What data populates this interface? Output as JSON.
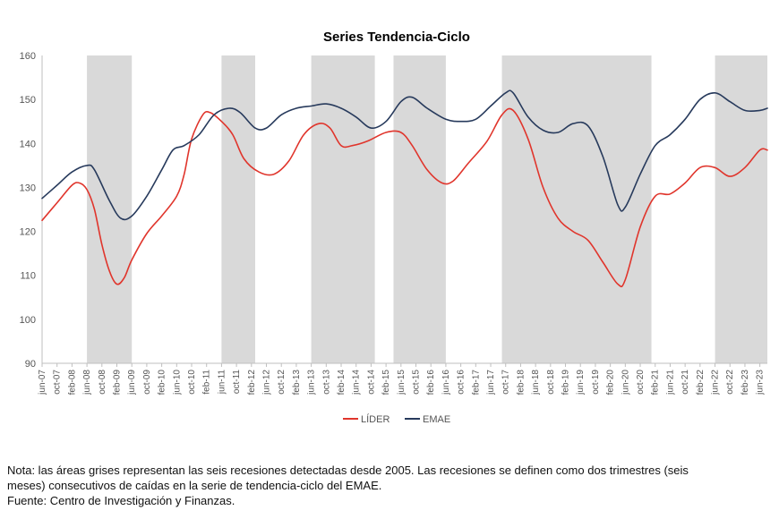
{
  "chart_data": {
    "type": "line",
    "title": "Series Tendencia-Ciclo",
    "ylim": [
      90,
      160
    ],
    "yticks": [
      90,
      100,
      110,
      120,
      130,
      140,
      150,
      160
    ],
    "x_range": [
      "2007-06",
      "2023-08"
    ],
    "xtick_labels": [
      "jun-07",
      "oct-07",
      "feb-08",
      "jun-08",
      "oct-08",
      "feb-09",
      "jun-09",
      "oct-09",
      "feb-10",
      "jun-10",
      "oct-10",
      "feb-11",
      "jun-11",
      "oct-11",
      "feb-12",
      "jun-12",
      "oct-12",
      "feb-13",
      "jun-13",
      "oct-13",
      "feb-14",
      "jun-14",
      "oct-14",
      "feb-15",
      "jun-15",
      "oct-15",
      "feb-16",
      "jun-16",
      "oct-16",
      "feb-17",
      "jun-17",
      "oct-17",
      "feb-18",
      "jun-18",
      "oct-18",
      "feb-19",
      "jun-19",
      "oct-19",
      "feb-20",
      "jun-20",
      "oct-20",
      "feb-21",
      "jun-21",
      "oct-21",
      "feb-22",
      "jun-22",
      "oct-22",
      "feb-23",
      "jun-23"
    ],
    "recessions": [
      [
        "2008-06",
        "2009-06"
      ],
      [
        "2011-06",
        "2012-03"
      ],
      [
        "2013-06",
        "2014-11"
      ],
      [
        "2015-04",
        "2016-06"
      ],
      [
        "2017-09",
        "2021-01"
      ],
      [
        "2022-06",
        "2023-08"
      ]
    ],
    "series": [
      {
        "name": "LÍDER",
        "color": "#e0352c",
        "points": [
          [
            "2007-06",
            122.5
          ],
          [
            "2007-10",
            126.5
          ],
          [
            "2008-02",
            130.5
          ],
          [
            "2008-04",
            131.0
          ],
          [
            "2008-06",
            129.5
          ],
          [
            "2008-08",
            125.0
          ],
          [
            "2008-10",
            117.0
          ],
          [
            "2008-12",
            111.0
          ],
          [
            "2009-02",
            108.0
          ],
          [
            "2009-04",
            109.5
          ],
          [
            "2009-06",
            113.5
          ],
          [
            "2009-10",
            119.5
          ],
          [
            "2010-02",
            123.5
          ],
          [
            "2010-06",
            128.0
          ],
          [
            "2010-08",
            133.0
          ],
          [
            "2010-10",
            141.0
          ],
          [
            "2011-01",
            146.5
          ],
          [
            "2011-03",
            147.0
          ],
          [
            "2011-06",
            145.0
          ],
          [
            "2011-09",
            142.0
          ],
          [
            "2011-12",
            136.5
          ],
          [
            "2012-04",
            133.5
          ],
          [
            "2012-08",
            133.0
          ],
          [
            "2012-12",
            136.0
          ],
          [
            "2013-04",
            142.0
          ],
          [
            "2013-08",
            144.5
          ],
          [
            "2013-11",
            143.5
          ],
          [
            "2014-02",
            139.5
          ],
          [
            "2014-05",
            139.5
          ],
          [
            "2014-09",
            140.5
          ],
          [
            "2015-02",
            142.5
          ],
          [
            "2015-06",
            142.5
          ],
          [
            "2015-09",
            139.5
          ],
          [
            "2016-01",
            134.0
          ],
          [
            "2016-05",
            131.0
          ],
          [
            "2016-08",
            131.5
          ],
          [
            "2016-12",
            135.5
          ],
          [
            "2017-05",
            140.5
          ],
          [
            "2017-09",
            146.5
          ],
          [
            "2017-12",
            147.5
          ],
          [
            "2018-04",
            141.0
          ],
          [
            "2018-08",
            130.0
          ],
          [
            "2018-12",
            123.0
          ],
          [
            "2019-04",
            120.0
          ],
          [
            "2019-08",
            118.0
          ],
          [
            "2019-12",
            113.0
          ],
          [
            "2020-04",
            108.0
          ],
          [
            "2020-06",
            109.0
          ],
          [
            "2020-10",
            121.0
          ],
          [
            "2021-02",
            128.0
          ],
          [
            "2021-06",
            128.5
          ],
          [
            "2021-10",
            131.0
          ],
          [
            "2022-02",
            134.5
          ],
          [
            "2022-06",
            134.5
          ],
          [
            "2022-10",
            132.5
          ],
          [
            "2023-02",
            134.5
          ],
          [
            "2023-06",
            138.5
          ],
          [
            "2023-08",
            138.5
          ]
        ]
      },
      {
        "name": "EMAE",
        "color": "#273a5c",
        "points": [
          [
            "2007-06",
            127.5
          ],
          [
            "2007-10",
            130.5
          ],
          [
            "2008-02",
            133.5
          ],
          [
            "2008-06",
            135.0
          ],
          [
            "2008-08",
            134.0
          ],
          [
            "2008-12",
            127.0
          ],
          [
            "2009-03",
            123.0
          ],
          [
            "2009-06",
            123.5
          ],
          [
            "2009-10",
            128.0
          ],
          [
            "2010-02",
            134.0
          ],
          [
            "2010-05",
            138.5
          ],
          [
            "2010-08",
            139.5
          ],
          [
            "2010-12",
            142.0
          ],
          [
            "2011-04",
            146.5
          ],
          [
            "2011-08",
            148.0
          ],
          [
            "2011-11",
            147.0
          ],
          [
            "2012-03",
            143.5
          ],
          [
            "2012-06",
            143.5
          ],
          [
            "2012-10",
            146.5
          ],
          [
            "2013-02",
            148.0
          ],
          [
            "2013-06",
            148.5
          ],
          [
            "2013-10",
            149.0
          ],
          [
            "2014-02",
            148.0
          ],
          [
            "2014-06",
            146.0
          ],
          [
            "2014-10",
            143.5
          ],
          [
            "2015-02",
            145.0
          ],
          [
            "2015-06",
            149.5
          ],
          [
            "2015-09",
            150.5
          ],
          [
            "2016-01",
            148.0
          ],
          [
            "2016-06",
            145.5
          ],
          [
            "2016-10",
            145.0
          ],
          [
            "2017-02",
            145.5
          ],
          [
            "2017-06",
            148.5
          ],
          [
            "2017-10",
            151.5
          ],
          [
            "2017-12",
            151.5
          ],
          [
            "2018-04",
            146.0
          ],
          [
            "2018-08",
            143.0
          ],
          [
            "2018-12",
            142.5
          ],
          [
            "2019-04",
            144.5
          ],
          [
            "2019-08",
            144.0
          ],
          [
            "2019-12",
            137.0
          ],
          [
            "2020-04",
            126.0
          ],
          [
            "2020-06",
            125.5
          ],
          [
            "2020-10",
            133.0
          ],
          [
            "2021-02",
            139.5
          ],
          [
            "2021-06",
            142.0
          ],
          [
            "2021-10",
            145.5
          ],
          [
            "2022-02",
            150.0
          ],
          [
            "2022-06",
            151.5
          ],
          [
            "2022-10",
            149.5
          ],
          [
            "2023-02",
            147.5
          ],
          [
            "2023-06",
            147.5
          ],
          [
            "2023-08",
            148.0
          ]
        ]
      }
    ],
    "legend_position": "bottom-center",
    "grid": false
  },
  "footnote": {
    "line1": "Nota: las áreas grises representan las seis recesiones detectadas desde 2005. Las recesiones se definen como dos trimestres (seis",
    "line2": "meses) consecutivos de caídas en la serie de tendencia-ciclo del EMAE.",
    "line3": "Fuente: Centro de Investigación y Finanzas."
  }
}
